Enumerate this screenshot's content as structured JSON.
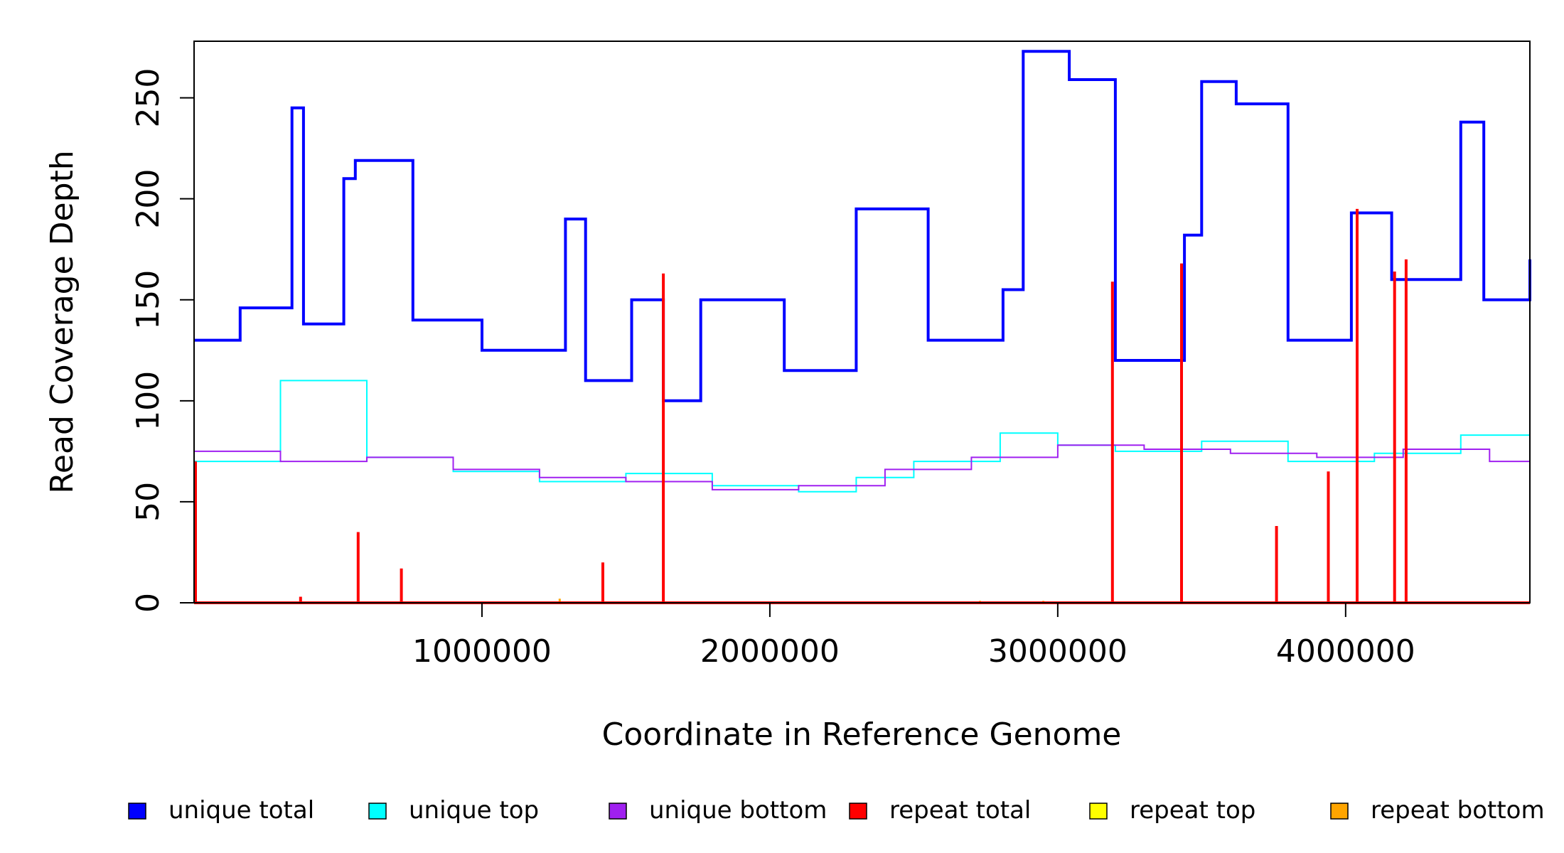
{
  "chart_data": {
    "type": "line",
    "title": "",
    "xlabel": "Coordinate in Reference Genome",
    "ylabel": "Read Coverage Depth",
    "xlim": [
      0,
      4640000
    ],
    "ylim": [
      0,
      278
    ],
    "x_ticks": [
      1000000,
      2000000,
      3000000,
      4000000
    ],
    "x_tick_labels": [
      "1000000",
      "2000000",
      "3000000",
      "4000000"
    ],
    "y_ticks": [
      0,
      50,
      100,
      150,
      200,
      250
    ],
    "y_tick_labels": [
      "0",
      "50",
      "100",
      "150",
      "200",
      "250"
    ],
    "grid": false,
    "legend_position": "bottom",
    "legend": [
      {
        "label": "unique total",
        "color": "#0000ff"
      },
      {
        "label": "unique top",
        "color": "#00ffff"
      },
      {
        "label": "unique bottom",
        "color": "#a020f0"
      },
      {
        "label": "repeat total",
        "color": "#ff0000"
      },
      {
        "label": "repeat top",
        "color": "#ffff00"
      },
      {
        "label": "repeat bottom",
        "color": "#ffa500"
      }
    ],
    "series": [
      {
        "name": "unique total",
        "color": "#0000ff",
        "x": [
          0,
          160000,
          340000,
          380000,
          520000,
          560000,
          760000,
          1000000,
          1290000,
          1360000,
          1520000,
          1630000,
          1760000,
          2050000,
          2300000,
          2550000,
          2810000,
          2880000,
          3040000,
          3200000,
          3440000,
          3500000,
          3620000,
          3800000,
          4020000,
          4160000,
          4400000,
          4480000,
          4640000
        ],
        "y": [
          130,
          146,
          245,
          138,
          210,
          219,
          140,
          125,
          190,
          110,
          150,
          100,
          150,
          115,
          195,
          130,
          155,
          273,
          259,
          120,
          182,
          258,
          247,
          130,
          193,
          160,
          238,
          150,
          170
        ]
      },
      {
        "name": "unique top",
        "color": "#00ffff",
        "x": [
          0,
          300000,
          600000,
          900000,
          1200000,
          1500000,
          1800000,
          2100000,
          2300000,
          2500000,
          2800000,
          3000000,
          3200000,
          3500000,
          3800000,
          4100000,
          4400000,
          4640000
        ],
        "y": [
          70,
          110,
          72,
          65,
          60,
          64,
          58,
          55,
          62,
          70,
          84,
          78,
          75,
          80,
          70,
          74,
          83,
          70
        ]
      },
      {
        "name": "unique bottom",
        "color": "#a020f0",
        "x": [
          0,
          300000,
          600000,
          900000,
          1200000,
          1500000,
          1800000,
          2100000,
          2400000,
          2700000,
          3000000,
          3300000,
          3600000,
          3900000,
          4200000,
          4500000,
          4640000
        ],
        "y": [
          75,
          70,
          72,
          66,
          62,
          60,
          56,
          58,
          66,
          72,
          78,
          76,
          74,
          72,
          76,
          70,
          80
        ]
      },
      {
        "name": "repeat total",
        "color": "#ff0000",
        "x": [
          5000,
          370000,
          570000,
          720000,
          1420000,
          1630000,
          3190000,
          3430000,
          3760000,
          3940000,
          4040000,
          4170000,
          4210000
        ],
        "y": [
          70,
          3,
          35,
          17,
          20,
          163,
          159,
          168,
          38,
          65,
          195,
          164,
          170
        ]
      },
      {
        "name": "repeat top",
        "color": "#ffff00",
        "x": [
          5000,
          570000,
          720000,
          1420000,
          3760000,
          3940000
        ],
        "y": [
          25,
          18,
          8,
          10,
          12,
          20
        ]
      },
      {
        "name": "repeat bottom",
        "color": "#ffa500",
        "x": [
          5000,
          370000,
          570000,
          720000,
          1270000,
          1420000,
          2730000,
          2950000,
          3760000,
          3940000
        ],
        "y": [
          45,
          3,
          18,
          10,
          2,
          10,
          1,
          1,
          27,
          25
        ]
      }
    ]
  }
}
